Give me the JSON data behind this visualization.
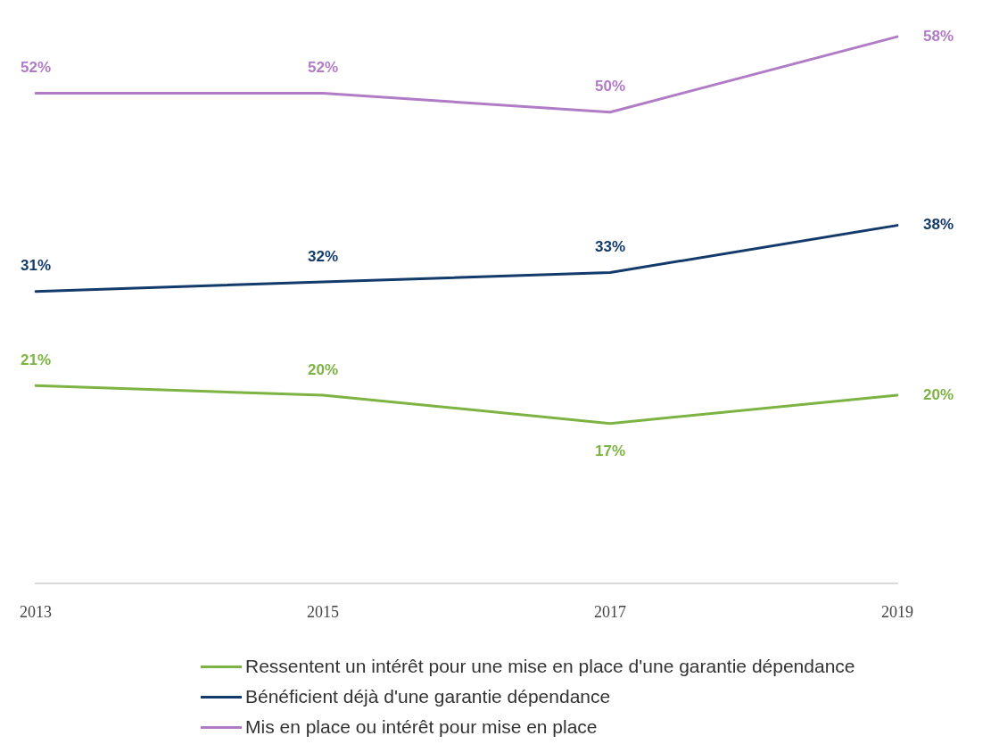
{
  "chart_data": {
    "type": "line",
    "categories": [
      "2013",
      "2015",
      "2017",
      "2019"
    ],
    "series": [
      {
        "name": "Ressentent un intérêt pour une mise en place d'une garantie dépendance",
        "color": "#7cb342",
        "values": [
          21,
          20,
          17,
          20
        ],
        "value_labels": [
          "21%",
          "20%",
          "17%",
          "20%"
        ]
      },
      {
        "name": "Bénéficient déjà d'une garantie dépendance",
        "color": "#123a6b",
        "values": [
          31,
          32,
          33,
          38
        ],
        "value_labels": [
          "31%",
          "32%",
          "33%",
          "38%"
        ]
      },
      {
        "name": "Mis en place ou intérêt pour mise en place",
        "color": "#b07cc6",
        "values": [
          52,
          52,
          50,
          58
        ],
        "value_labels": [
          "52%",
          "52%",
          "50%",
          "58%"
        ]
      }
    ],
    "legend": "bottom",
    "grid": false,
    "marker": "none",
    "line_style": "solid"
  }
}
